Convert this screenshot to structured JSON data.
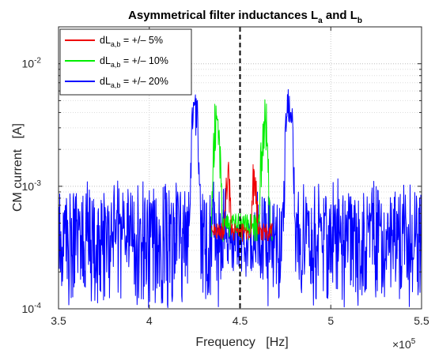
{
  "chart_data": {
    "type": "line",
    "title": {
      "main": "Asymmetrical filter inductances L",
      "sub1": "a",
      "mid": " and L",
      "sub2": "b"
    },
    "xlabel": "Frequency   [Hz]",
    "ylabel": "CM current   [A]",
    "x_multiplier": {
      "base": "×10",
      "exp": "5"
    },
    "xlim": [
      3.5,
      5.5
    ],
    "x_ticks": [
      "3.5",
      "4",
      "4.5",
      "5",
      "5.5"
    ],
    "x_tick_values": [
      3.5,
      4.0,
      4.5,
      5.0,
      5.5
    ],
    "yscale": "log",
    "ylim": [
      0.0001,
      0.02
    ],
    "y_ticks": [
      {
        "value": 0.01,
        "base": "10",
        "exp": "-2"
      },
      {
        "value": 0.001,
        "base": "10",
        "exp": "-3"
      },
      {
        "value": 0.0001,
        "base": "10",
        "exp": "-4"
      }
    ],
    "grid": "dotted, major and minor",
    "legend_position": "top-left",
    "vertical_marker": {
      "x": 4.5,
      "style": "black dashed"
    },
    "series": [
      {
        "name": {
          "pre": "dL",
          "sub": "a,b",
          "post": " = +/– 20%"
        },
        "color": "#0000ff",
        "center_peaks": [],
        "side_peaks": [
          [
            4.255,
            0.0075
          ],
          [
            4.245,
            0.006
          ],
          [
            4.765,
            0.0079
          ],
          [
            4.778,
            0.0064
          ]
        ],
        "floor": [
          0.0001,
          0.0012
        ]
      },
      {
        "name": {
          "pre": "dL",
          "sub": "a,b",
          "post": " = +/– 10%"
        },
        "color": "#00ee00",
        "center_peaks": [
          [
            4.367,
            0.0055
          ],
          [
            4.38,
            0.0033
          ],
          [
            4.64,
            0.0054
          ],
          [
            4.625,
            0.0033
          ]
        ],
        "side_peaks": [],
        "floor": [
          0.00035,
          0.0006
        ]
      },
      {
        "name": {
          "pre": "dL",
          "sub": "a,b",
          "post": " = +/– 5%"
        },
        "color": "#ee0000",
        "center_peaks": [
          [
            4.435,
            0.0019
          ],
          [
            4.425,
            0.0013
          ],
          [
            4.575,
            0.0018
          ],
          [
            4.585,
            0.0013
          ]
        ],
        "side_peaks": [],
        "floor": [
          0.00035,
          0.0005
        ]
      }
    ],
    "legend_order": [
      2,
      1,
      0
    ]
  }
}
